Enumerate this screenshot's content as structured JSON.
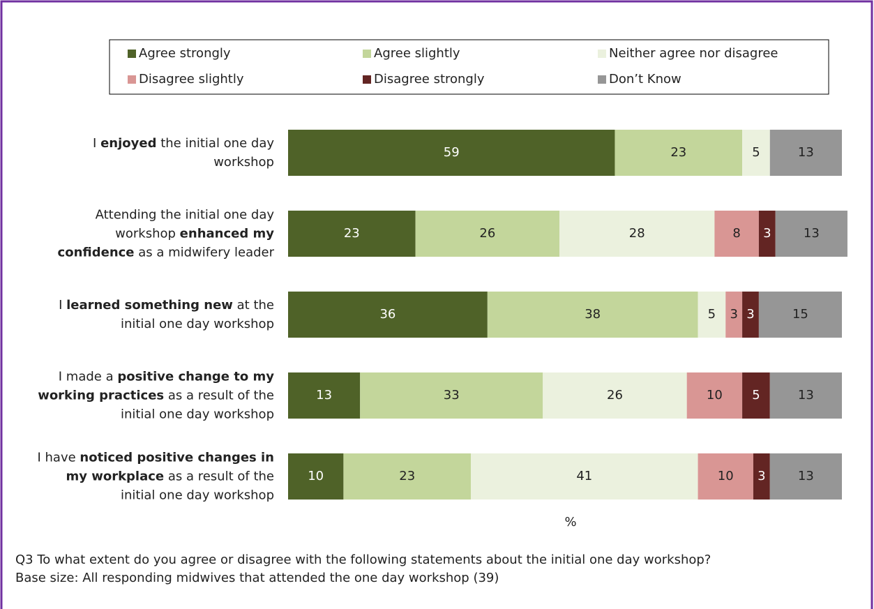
{
  "chart_data": {
    "type": "stacked-bar-horizontal",
    "categories": [
      [
        {
          "text": "I "
        },
        {
          "text": "enjoyed",
          "bold": true
        },
        {
          "text": " the initial one day workshop"
        }
      ],
      [
        {
          "text": "Attending the initial one day workshop "
        },
        {
          "text": "enhanced my confidence",
          "bold": true
        },
        {
          "text": " as a midwifery leader"
        }
      ],
      [
        {
          "text": "I "
        },
        {
          "text": "learned something new",
          "bold": true
        },
        {
          "text": " at the initial one day workshop"
        }
      ],
      [
        {
          "text": "I made a "
        },
        {
          "text": "positive change to my working practices",
          "bold": true
        },
        {
          "text": " as a result of the initial one day workshop"
        }
      ],
      [
        {
          "text": "I have "
        },
        {
          "text": "noticed positive changes in my workplace",
          "bold": true
        },
        {
          "text": " as a result of the initial one day workshop"
        }
      ]
    ],
    "series": [
      {
        "name": "Agree strongly",
        "color": "#4f6228",
        "values": [
          59,
          23,
          36,
          13,
          10
        ]
      },
      {
        "name": "Agree slightly",
        "color": "#c3d69b",
        "values": [
          23,
          26,
          38,
          33,
          23
        ]
      },
      {
        "name": "Neither agree nor disagree",
        "color": "#ebf1de",
        "values": [
          5,
          28,
          5,
          26,
          41
        ]
      },
      {
        "name": "Disagree slightly",
        "color": "#d99694",
        "values": [
          null,
          8,
          3,
          10,
          10
        ]
      },
      {
        "name": "Disagree strongly",
        "color": "#632523",
        "values": [
          null,
          3,
          3,
          5,
          3
        ]
      },
      {
        "name": "Don’t Know",
        "color": "#969696",
        "values": [
          13,
          13,
          15,
          13,
          13
        ]
      }
    ],
    "xlim": [
      0,
      100
    ],
    "x_label": "%",
    "legend": "top",
    "notes": [
      "Q3  To what extent do you agree or disagree with the following statements about the initial one day workshop?",
      "Base size: All responding midwives that attended the one day workshop (39)"
    ]
  }
}
